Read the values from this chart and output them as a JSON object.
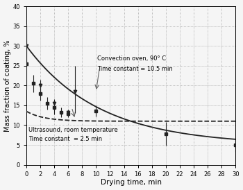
{
  "xlabel": "Drying time, min",
  "ylabel": "Mass fraction of coating, %",
  "xlim": [
    0,
    30
  ],
  "ylim": [
    0,
    40
  ],
  "xticks": [
    0,
    2,
    4,
    6,
    8,
    10,
    12,
    14,
    16,
    18,
    20,
    22,
    24,
    26,
    28,
    30
  ],
  "yticks": [
    0,
    5,
    10,
    15,
    20,
    25,
    30,
    35,
    40
  ],
  "convection_label1": "Convection oven, 90° C",
  "convection_label2": "Time constant = 10.5 min",
  "ultrasound_label1": "Ultrasound, room temperature",
  "ultrasound_label2": "Time constant  = 2.5 min",
  "conv_yinf": 5.0,
  "conv_amp": 25.0,
  "conv_tau": 10.5,
  "ultra_yinf": 11.0,
  "ultra_amp": 2.5,
  "ultra_tau": 2.5,
  "conv_data_x": [
    0,
    1,
    2,
    3,
    4,
    5,
    6,
    10,
    20,
    30
  ],
  "conv_data_y": [
    25.5,
    20.5,
    18.0,
    15.5,
    14.5,
    13.2,
    12.8,
    13.5,
    7.8,
    5.0
  ],
  "conv_data_yerr_lo": [
    6.5,
    2.2,
    1.8,
    1.5,
    1.8,
    1.2,
    0.8,
    1.4,
    3.0,
    1.8
  ],
  "conv_data_yerr_hi": [
    9.5,
    2.2,
    1.8,
    1.5,
    1.8,
    1.2,
    0.8,
    1.4,
    3.0,
    1.8
  ],
  "ultra_data_x": [
    0,
    2,
    4,
    6,
    7
  ],
  "ultra_data_y": [
    30.0,
    20.0,
    15.5,
    13.2,
    18.5
  ],
  "ultra_data_yerr_lo": [
    4.5,
    1.5,
    1.0,
    0.8,
    5.5
  ],
  "ultra_data_yerr_hi": [
    5.5,
    1.5,
    1.0,
    0.8,
    6.5
  ],
  "background_color": "#f5f5f5",
  "curve_color": "#222222",
  "grid_color": "#999999"
}
